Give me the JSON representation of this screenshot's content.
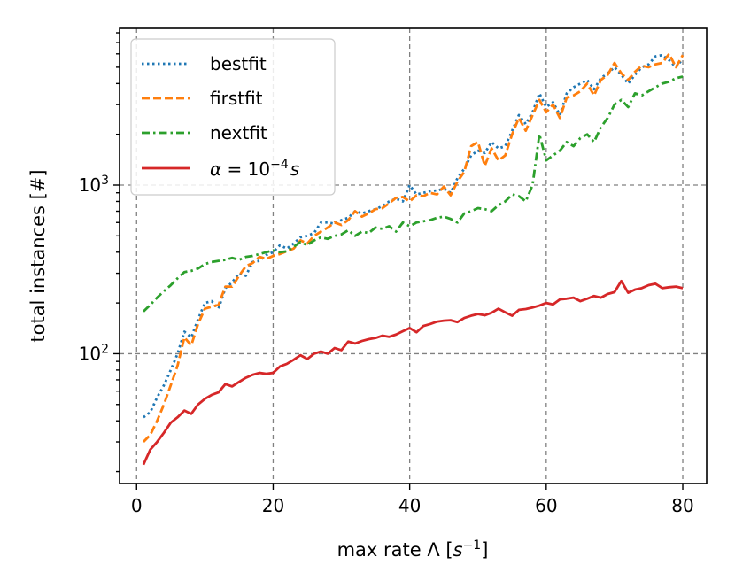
{
  "chart_data": {
    "type": "line",
    "title": "",
    "xlabel": "max rate Λ [s⁻¹]",
    "xlabel_parts": {
      "prefix": "max rate Λ [",
      "var": "s",
      "exp": "−1",
      "suffix": "]"
    },
    "ylabel": "total instances [#]",
    "xlim": [
      -2.5,
      83.5
    ],
    "ylim": [
      17,
      8500
    ],
    "yscale": "log",
    "grid": true,
    "legend_position": "top-left",
    "x_ticks": [
      {
        "value": 0,
        "label": "0"
      },
      {
        "value": 20,
        "label": "20"
      },
      {
        "value": 40,
        "label": "40"
      },
      {
        "value": 60,
        "label": "60"
      },
      {
        "value": 80,
        "label": "80"
      }
    ],
    "y_ticks": [
      {
        "value": 100,
        "base": "10",
        "exp": "2"
      },
      {
        "value": 1000,
        "base": "10",
        "exp": "3"
      }
    ],
    "x": [
      1,
      2,
      3,
      4,
      5,
      6,
      7,
      8,
      9,
      10,
      11,
      12,
      13,
      14,
      15,
      16,
      17,
      18,
      19,
      20,
      21,
      22,
      23,
      24,
      25,
      26,
      27,
      28,
      29,
      30,
      31,
      32,
      33,
      34,
      35,
      36,
      37,
      38,
      39,
      40,
      41,
      42,
      43,
      44,
      45,
      46,
      47,
      48,
      49,
      50,
      51,
      52,
      53,
      54,
      55,
      56,
      57,
      58,
      59,
      60,
      61,
      62,
      63,
      64,
      65,
      66,
      67,
      68,
      69,
      70,
      71,
      72,
      73,
      74,
      75,
      76,
      77,
      78,
      79,
      80
    ],
    "series": [
      {
        "name": "bestfit",
        "color": "#1f77b4",
        "style": "dotted",
        "values": [
          42,
          45,
          55,
          65,
          80,
          100,
          135,
          125,
          160,
          200,
          205,
          185,
          245,
          265,
          300,
          290,
          350,
          355,
          385,
          400,
          440,
          420,
          450,
          490,
          500,
          520,
          600,
          600,
          590,
          620,
          640,
          700,
          680,
          700,
          720,
          750,
          800,
          830,
          800,
          1000,
          880,
          900,
          920,
          930,
          950,
          900,
          1100,
          1250,
          1500,
          1600,
          1550,
          1800,
          1650,
          1700,
          2100,
          2600,
          2300,
          2700,
          3500,
          2900,
          3100,
          2600,
          3500,
          3800,
          4000,
          4200,
          3700,
          4300,
          4600,
          5000,
          4500,
          4000,
          4500,
          5000,
          5200,
          5800,
          5900,
          5500,
          5000,
          5600
        ]
      },
      {
        "name": "firstfit",
        "color": "#ff7f0e",
        "style": "dashed",
        "values": [
          30,
          33,
          40,
          50,
          65,
          85,
          125,
          112,
          150,
          185,
          190,
          195,
          250,
          250,
          290,
          330,
          345,
          375,
          365,
          380,
          390,
          405,
          420,
          470,
          450,
          500,
          530,
          560,
          600,
          580,
          620,
          700,
          650,
          680,
          720,
          730,
          780,
          840,
          850,
          800,
          870,
          860,
          900,
          880,
          980,
          870,
          1050,
          1200,
          1700,
          1800,
          1300,
          1650,
          1400,
          1500,
          2000,
          2500,
          2100,
          2600,
          3200,
          2700,
          3000,
          2500,
          3300,
          3400,
          3600,
          4000,
          3400,
          4200,
          4500,
          5300,
          4600,
          4200,
          4700,
          5100,
          5000,
          5200,
          5300,
          6000,
          5000,
          5900
        ]
      },
      {
        "name": "nextfit",
        "color": "#2ca02c",
        "style": "dashdot",
        "values": [
          178,
          195,
          215,
          235,
          255,
          280,
          305,
          310,
          320,
          340,
          350,
          355,
          360,
          370,
          360,
          375,
          380,
          390,
          400,
          410,
          400,
          405,
          430,
          460,
          440,
          470,
          490,
          480,
          500,
          510,
          540,
          500,
          530,
          520,
          560,
          550,
          570,
          530,
          600,
          570,
          600,
          610,
          620,
          640,
          650,
          630,
          600,
          680,
          700,
          730,
          720,
          700,
          760,
          800,
          880,
          860,
          800,
          1000,
          2000,
          1400,
          1500,
          1600,
          1800,
          1700,
          1900,
          2000,
          1800,
          2200,
          2500,
          3000,
          3200,
          2900,
          3500,
          3400,
          3600,
          3800,
          4000,
          4100,
          4300,
          4400
        ]
      },
      {
        "name": "α = 10⁻⁴s",
        "legend_parts": {
          "var": "α",
          "eq": " = 10",
          "exp": "−4",
          "unit": "s"
        },
        "color": "#d62728",
        "style": "solid",
        "values": [
          22,
          27,
          30,
          34,
          39,
          42,
          46,
          44,
          50,
          54,
          57,
          59,
          66,
          64,
          68,
          72,
          75,
          77,
          76,
          77,
          84,
          87,
          92,
          98,
          93,
          100,
          103,
          100,
          108,
          105,
          118,
          115,
          119,
          122,
          124,
          128,
          126,
          130,
          136,
          142,
          134,
          146,
          150,
          155,
          157,
          158,
          154,
          163,
          168,
          172,
          169,
          175,
          185,
          176,
          168,
          182,
          184,
          188,
          193,
          200,
          196,
          210,
          212,
          215,
          205,
          212,
          220,
          215,
          226,
          232,
          270,
          230,
          240,
          245,
          255,
          260,
          245,
          248,
          250,
          245
        ]
      }
    ]
  }
}
